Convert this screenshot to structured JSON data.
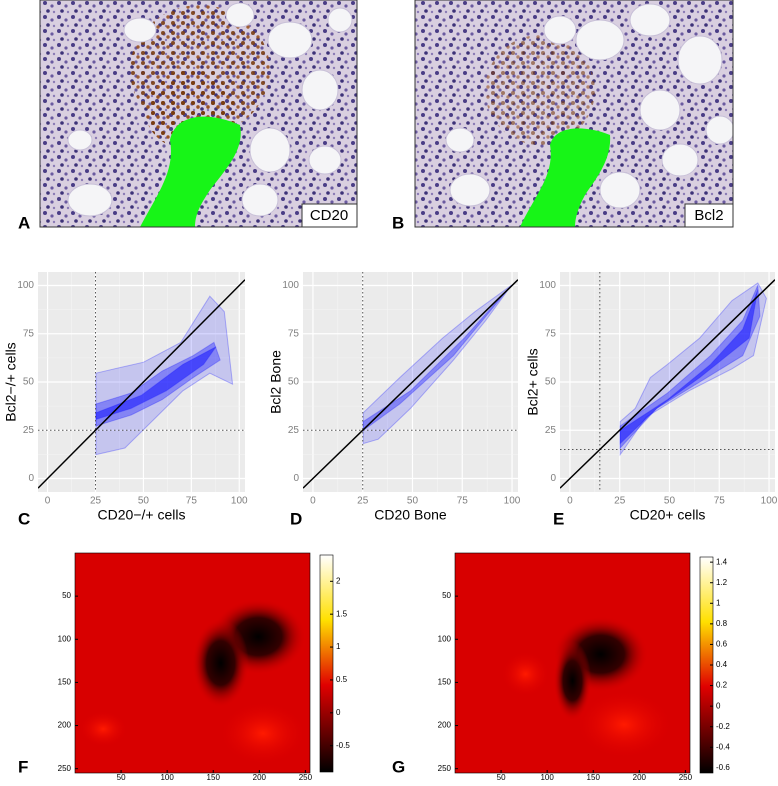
{
  "images": [
    {
      "label": "A",
      "caption": "CD20"
    },
    {
      "label": "B",
      "caption": "Bcl2"
    }
  ],
  "chart_data": [
    {
      "type": "density",
      "panel_label": "C",
      "xlabel": "CD20−/+ cells",
      "ylabel": "Bcl2−/+ cells",
      "xlim": [
        -5,
        103
      ],
      "ylim": [
        -7,
        107
      ],
      "xticks": [
        0,
        25,
        50,
        75,
        100
      ],
      "yticks": [
        0,
        25,
        50,
        75,
        100
      ],
      "threshold": 25,
      "color": "#1a1aff",
      "grid": true
    },
    {
      "type": "density",
      "panel_label": "D",
      "xlabel": "CD20 Bone",
      "ylabel": "Bcl2 Bone",
      "xlim": [
        -5,
        103
      ],
      "ylim": [
        -7,
        107
      ],
      "xticks": [
        0,
        25,
        50,
        75,
        100
      ],
      "yticks": [
        0,
        25,
        50,
        75,
        100
      ],
      "threshold": 25,
      "color": "#1a1aff",
      "grid": true
    },
    {
      "type": "density",
      "panel_label": "E",
      "xlabel": "CD20+ cells",
      "ylabel": "Bcl2+ cells",
      "xlim": [
        -5,
        103
      ],
      "ylim": [
        -7,
        107
      ],
      "xticks": [
        0,
        25,
        50,
        75,
        100
      ],
      "yticks": [
        0,
        25,
        50,
        75,
        100
      ],
      "threshold": 15,
      "color": "#1a1aff",
      "grid": true
    },
    {
      "type": "heatmap",
      "panel_label": "F",
      "colormap": "hot",
      "xlim": [
        0,
        255
      ],
      "ylim": [
        0,
        255
      ],
      "xticks": [
        50,
        100,
        150,
        200,
        250
      ],
      "yticks": [
        50,
        100,
        150,
        200,
        250
      ],
      "clim": [
        -0.9,
        2.4
      ],
      "cticks": [
        2,
        1.5,
        1,
        0.5,
        0,
        -0.5
      ]
    },
    {
      "type": "heatmap",
      "panel_label": "G",
      "colormap": "hot",
      "xlim": [
        0,
        255
      ],
      "ylim": [
        0,
        255
      ],
      "xticks": [
        50,
        100,
        150,
        200,
        250
      ],
      "yticks": [
        50,
        100,
        150,
        200,
        250
      ],
      "clim": [
        -0.65,
        1.45
      ],
      "cticks": [
        1.4,
        1.2,
        1,
        0.8,
        0.6,
        0.4,
        0.2,
        0,
        -0.2,
        -0.4,
        -0.6
      ]
    }
  ]
}
